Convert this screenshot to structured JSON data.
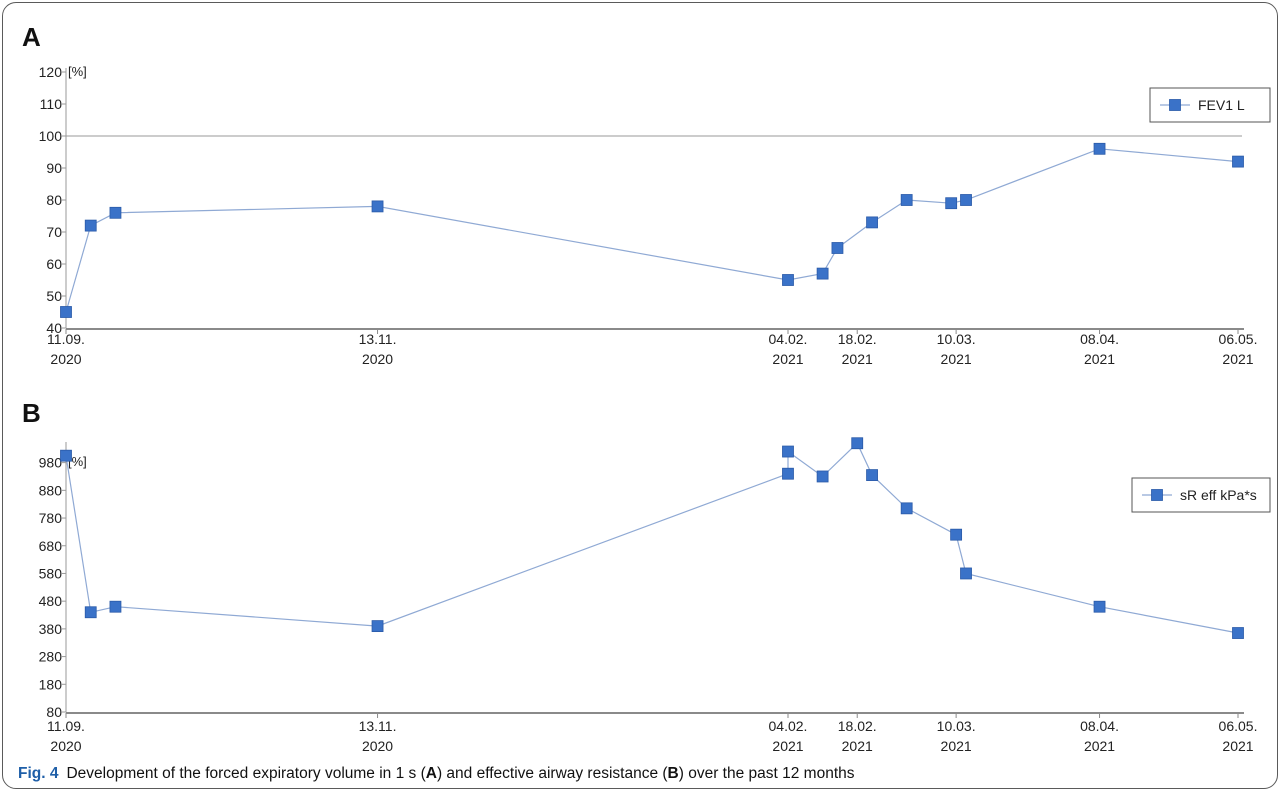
{
  "chart_data": [
    {
      "type": "line",
      "panel_label": "A",
      "unit_label": "[%]",
      "x": [
        "2020-09-11",
        "2020-09-16",
        "2020-09-21",
        "2020-11-13",
        "2021-02-04",
        "2021-02-11",
        "2021-02-14",
        "2021-02-21",
        "2021-02-28",
        "2021-03-09",
        "2021-03-12",
        "2021-04-08",
        "2021-05-06"
      ],
      "series": [
        {
          "name": "FEV1 L",
          "color": "#3a72c8",
          "values": [
            45,
            72,
            76,
            78,
            55,
            57,
            65,
            73,
            80,
            79,
            80,
            96,
            92
          ]
        }
      ],
      "reference_line": 100,
      "ylim": [
        40,
        120
      ],
      "yticks": [
        40,
        50,
        60,
        70,
        80,
        90,
        100,
        110,
        120
      ],
      "xtick_labels": [
        {
          "date": "2020-09-11",
          "day": "11.09.",
          "year": "2020"
        },
        {
          "date": "2020-11-13",
          "day": "13.11.",
          "year": "2020"
        },
        {
          "date": "2021-02-04",
          "day": "04.02.",
          "year": "2021"
        },
        {
          "date": "2021-02-18",
          "day": "18.02.",
          "year": "2021"
        },
        {
          "date": "2021-03-10",
          "day": "10.03.",
          "year": "2021"
        },
        {
          "date": "2021-04-08",
          "day": "08.04.",
          "year": "2021"
        },
        {
          "date": "2021-05-06",
          "day": "06.05.",
          "year": "2021"
        }
      ],
      "legend": "top-right"
    },
    {
      "type": "line",
      "panel_label": "B",
      "unit_label": "[%]",
      "x": [
        "2020-09-11",
        "2020-09-16",
        "2020-09-21",
        "2020-11-13",
        "2021-02-04",
        "2021-02-04",
        "2021-02-11",
        "2021-02-18",
        "2021-02-21",
        "2021-02-28",
        "2021-03-10",
        "2021-03-12",
        "2021-04-08",
        "2021-05-06"
      ],
      "series": [
        {
          "name": "sR eff kPa*s",
          "color": "#3a72c8",
          "values": [
            1005,
            440,
            460,
            390,
            940,
            1020,
            930,
            1050,
            935,
            815,
            720,
            580,
            460,
            365
          ]
        }
      ],
      "ylim": [
        80,
        1040
      ],
      "yticks": [
        80,
        180,
        280,
        380,
        480,
        580,
        680,
        780,
        880,
        980
      ],
      "xtick_labels": [
        {
          "date": "2020-09-11",
          "day": "11.09.",
          "year": "2020"
        },
        {
          "date": "2020-11-13",
          "day": "13.11.",
          "year": "2020"
        },
        {
          "date": "2021-02-04",
          "day": "04.02.",
          "year": "2021"
        },
        {
          "date": "2021-02-18",
          "day": "18.02.",
          "year": "2021"
        },
        {
          "date": "2021-03-10",
          "day": "10.03.",
          "year": "2021"
        },
        {
          "date": "2021-04-08",
          "day": "08.04.",
          "year": "2021"
        },
        {
          "date": "2021-05-06",
          "day": "06.05.",
          "year": "2021"
        }
      ],
      "legend": "top-right"
    }
  ],
  "caption": {
    "fig": "Fig. 4",
    "part1": "Development of the forced expiratory volume in 1 s (",
    "a": "A",
    "part2": ") and effective airway resistance (",
    "b": "B",
    "part3": ") over the past 12 months"
  }
}
